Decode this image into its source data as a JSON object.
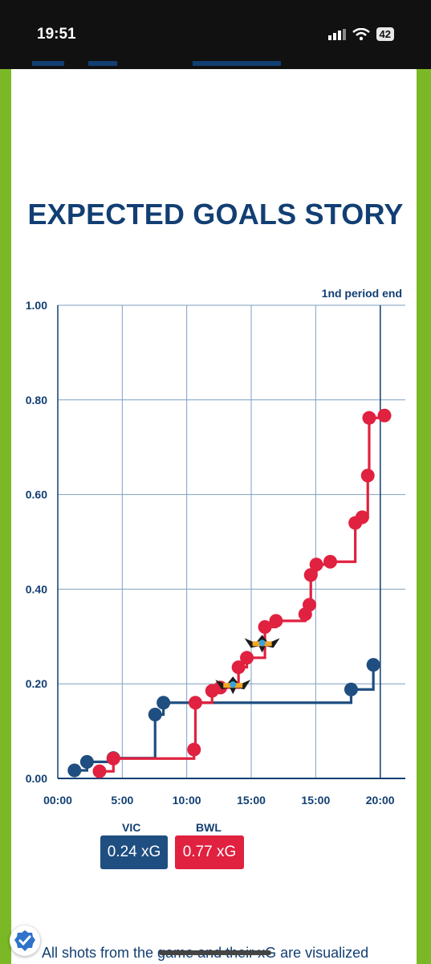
{
  "status_bar": {
    "time": "19:51",
    "battery": "42"
  },
  "heading": "EXPECTED GOALS STORY",
  "chart_data": {
    "type": "line",
    "step": true,
    "annotation": "1nd period end",
    "x_ticks": [
      "00:00",
      "5:00",
      "10:00",
      "15:00",
      "15:00",
      "20:00"
    ],
    "y_ticks": [
      "0.00",
      "0.20",
      "0.40",
      "0.60",
      "0.80",
      "1.00"
    ],
    "xlim": [
      0,
      25
    ],
    "ylim": [
      0,
      1
    ],
    "period_end_x": 23.2,
    "grid": true,
    "series": [
      {
        "name": "VIC",
        "color": "#1f4e80",
        "points": [
          [
            1.2,
            0.017
          ],
          [
            2.1,
            0.035
          ],
          [
            4.0,
            0.043
          ],
          [
            7.0,
            0.135
          ],
          [
            7.6,
            0.16
          ],
          [
            21.1,
            0.188
          ],
          [
            22.7,
            0.24
          ]
        ]
      },
      {
        "name": "BWL",
        "color": "#e0213f",
        "points": [
          [
            3.0,
            0.015
          ],
          [
            4.0,
            0.042
          ],
          [
            9.8,
            0.061
          ],
          [
            9.9,
            0.16
          ],
          [
            11.1,
            0.185
          ],
          [
            11.7,
            0.192
          ],
          [
            13.0,
            0.235
          ],
          [
            13.6,
            0.255
          ],
          [
            14.9,
            0.32
          ],
          [
            15.7,
            0.333
          ],
          [
            17.8,
            0.347
          ],
          [
            18.1,
            0.367
          ],
          [
            18.2,
            0.43
          ],
          [
            18.6,
            0.452
          ],
          [
            19.6,
            0.458
          ],
          [
            21.4,
            0.54
          ],
          [
            21.9,
            0.552
          ],
          [
            22.3,
            0.64
          ],
          [
            22.4,
            0.762
          ],
          [
            23.5,
            0.767
          ]
        ]
      }
    ],
    "goal_markers": [
      {
        "team": "BWL",
        "x": 12.6,
        "y": 0.195,
        "icon": "team-logo-icon"
      },
      {
        "team": "BWL",
        "x": 14.7,
        "y": 0.283,
        "icon": "team-logo-icon"
      }
    ]
  },
  "summary": {
    "teams": [
      {
        "label": "VIC",
        "value": "0.24 xG",
        "color": "#1f4e80"
      },
      {
        "label": "BWL",
        "value": "0.77 xG",
        "color": "#e0213f"
      }
    ]
  },
  "footer_text": "All shots from the game and their xG are visualized"
}
